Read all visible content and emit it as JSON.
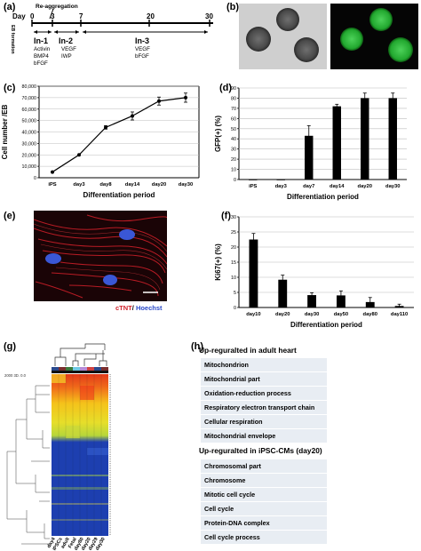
{
  "panels": {
    "a": "(a)",
    "b": "(b)",
    "c": "(c)",
    "d": "(d)",
    "e": "(e)",
    "f": "(f)",
    "g": "(g)",
    "h": "(h)"
  },
  "timeline": {
    "day_label": "Day",
    "ticks": [
      "0",
      "3",
      "7",
      "20",
      "30"
    ],
    "reaggregation": "Re-aggregation",
    "eb_formation": "EB formation",
    "stages": [
      {
        "name": "In-1",
        "factors": [
          "Activin",
          "BMP4",
          "bFGF"
        ]
      },
      {
        "name": "In-2",
        "factors": [
          "VEGF",
          "IWP"
        ]
      },
      {
        "name": "In-3",
        "factors": [
          "VEGF",
          "bFGF"
        ]
      }
    ]
  },
  "chart_c": {
    "type": "line",
    "categories": [
      "iPS",
      "day3",
      "day8",
      "day14",
      "day20",
      "day30"
    ],
    "values": [
      5000,
      20000,
      44000,
      54000,
      67000,
      70000
    ],
    "errors": [
      0,
      0,
      1500,
      3500,
      3500,
      4000
    ],
    "yticks": [
      "0",
      "10,000",
      "20,000",
      "30,000",
      "40,000",
      "50,000",
      "60,000",
      "70,000",
      "80,000"
    ],
    "ylim": [
      0,
      80000
    ],
    "xlabel": "Differentiation period",
    "ylabel": "Cell number /EB"
  },
  "chart_d": {
    "type": "bar",
    "categories": [
      "iPS",
      "day3",
      "day7",
      "day14",
      "day20",
      "day30"
    ],
    "values": [
      0,
      0,
      43,
      72,
      80,
      80
    ],
    "errors": [
      0,
      0,
      10,
      2,
      5,
      5
    ],
    "yticks": [
      "0",
      "10",
      "20",
      "30",
      "40",
      "50",
      "60",
      "70",
      "80",
      "90"
    ],
    "ylim": [
      0,
      90
    ],
    "xlabel": "Differentiation period",
    "ylabel": "GFP(+) (%)"
  },
  "chart_f": {
    "type": "bar",
    "categories": [
      "day10",
      "day20",
      "day30",
      "day50",
      "day80",
      "day110"
    ],
    "values": [
      22.5,
      9.2,
      4.1,
      4.0,
      1.8,
      0.5
    ],
    "errors": [
      2,
      1.5,
      0.8,
      1.5,
      1.5,
      0.6
    ],
    "yticks": [
      "0",
      "5",
      "10",
      "15",
      "20",
      "25",
      "30"
    ],
    "ylim": [
      0,
      30
    ],
    "xlabel": "Differentiation period",
    "ylabel": "Ki67(+) (%)"
  },
  "micrograph_e": {
    "legend_ctnt": "cTNT",
    "legend_sep": "/",
    "legend_hoechst": "Hoechst"
  },
  "heatmap_g": {
    "column_labels": [
      "day4",
      "iPSCs",
      "adult",
      "Fetal",
      "day80",
      "day20",
      "day29",
      "day30"
    ],
    "scale_label": "2000 3D. 0.0"
  },
  "box_h": {
    "heading_adult": "Up-reguralted in adult heart",
    "adult_terms": [
      "Mitochondrion",
      "Mitochondrial part",
      "Oxidation-reduction process",
      "Respiratory electron transport chain",
      "Cellular respiration",
      "Mitochondrial envelope"
    ],
    "heading_ipsc": "Up-reguralted in iPSC-CMs (day20)",
    "ipsc_terms": [
      "Chromosomal part",
      "Chromosome",
      "Mitotic cell cycle",
      "Cell cycle",
      "Protein-DNA complex",
      "Cell cycle process"
    ]
  }
}
